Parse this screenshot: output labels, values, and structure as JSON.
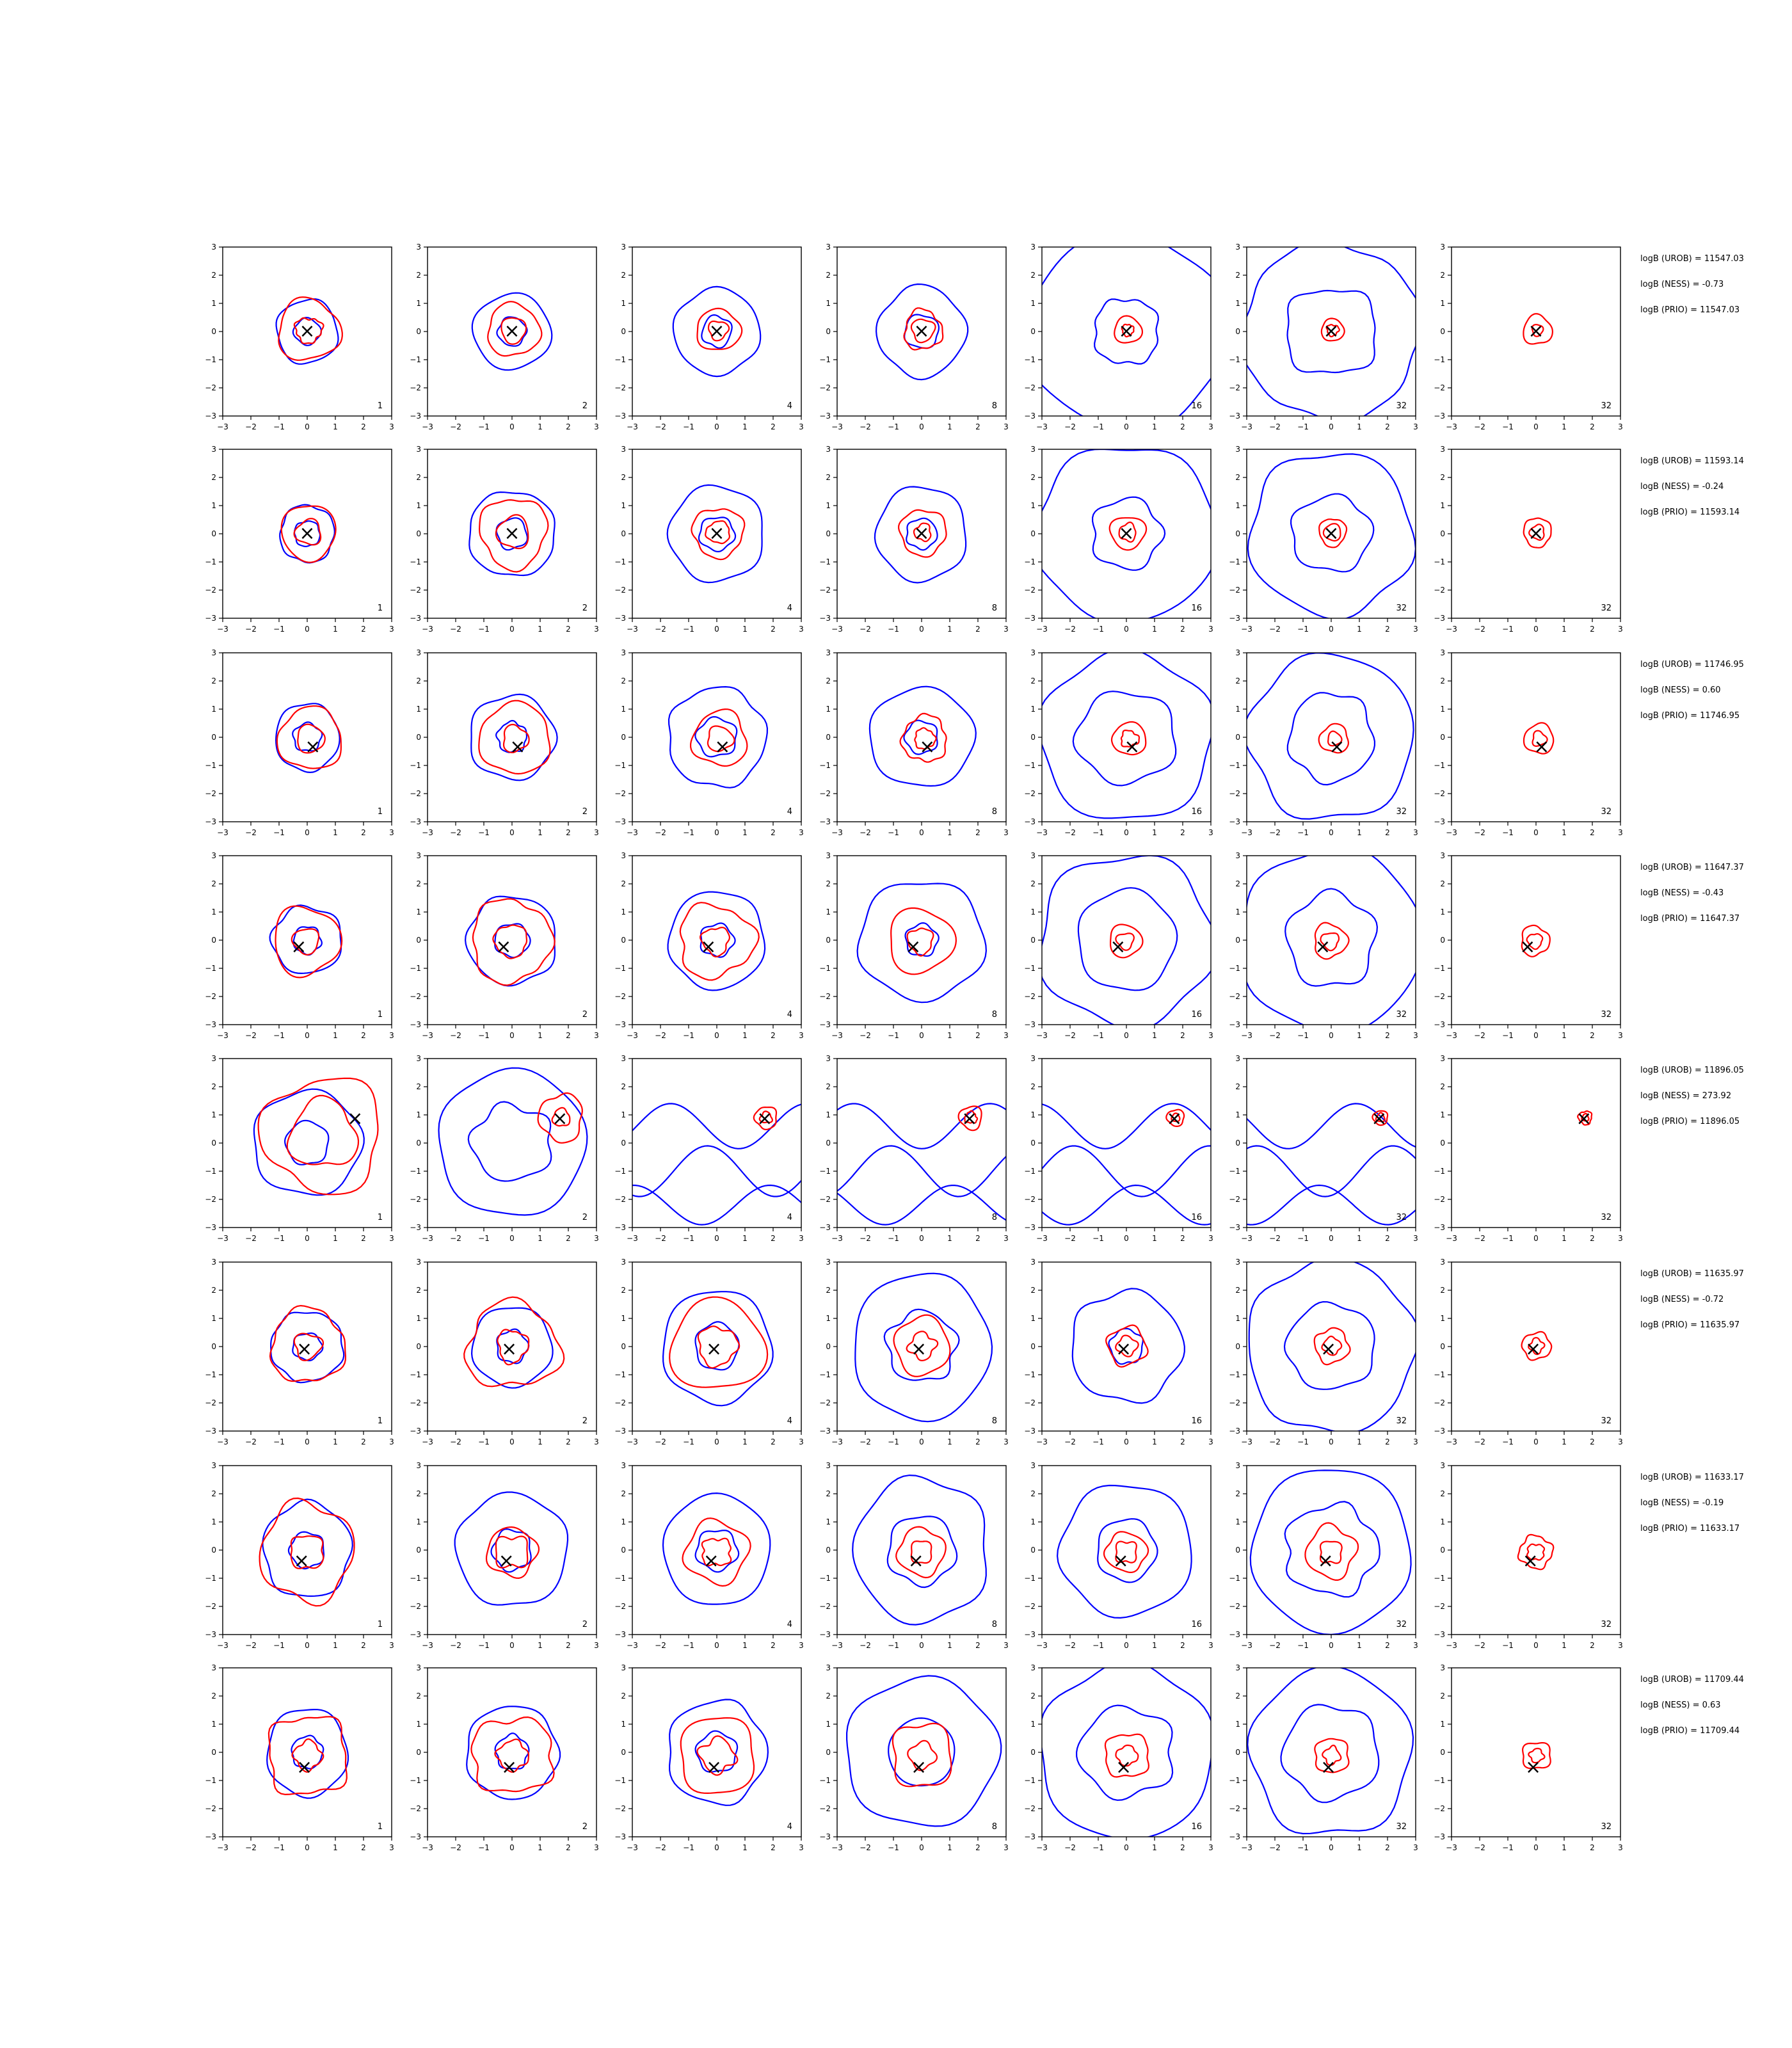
{
  "figure": {
    "axis_range": [
      -3,
      3
    ],
    "tick_labels": [
      "−3",
      "−2",
      "−1",
      "0",
      "1",
      "2",
      "3"
    ],
    "columns": [
      {
        "corner_label": "1"
      },
      {
        "corner_label": "2"
      },
      {
        "corner_label": "4"
      },
      {
        "corner_label": "8"
      },
      {
        "corner_label": "16"
      },
      {
        "corner_label": "32"
      },
      {
        "corner_label": "32"
      }
    ],
    "colors": {
      "outer_contours": "#0000ff",
      "inner_contours": "#ff0000",
      "marker": "#000000"
    },
    "marker_glyph": "×"
  },
  "chart_data": {
    "type": "contour",
    "grid": "7 columns x 8 rows of contour panels",
    "x_range": [
      -3,
      3
    ],
    "y_range": [
      -3,
      3
    ],
    "rows": [
      {
        "marker": [
          0.0,
          0.0
        ],
        "blue_radii": [
          [
            1.1,
            0.45
          ],
          [
            1.3,
            0.5
          ],
          [
            1.5,
            0.55
          ],
          [
            1.6,
            0.6
          ],
          [
            3.5,
            1.2
          ],
          [
            3.2,
            1.6
          ],
          []
        ],
        "red_radii": [
          [
            1.1,
            0.45
          ],
          [
            0.9,
            0.45
          ],
          [
            0.75,
            0.35
          ],
          [
            0.7,
            0.4
          ],
          [
            0.5,
            0.2
          ],
          [
            0.4,
            0.2
          ],
          [
            0.5,
            0.2
          ]
        ],
        "text": {
          "urob": "logB (UROB) = 11547.03",
          "ness": "logB (NESS) = -0.73",
          "prio": "logB (PRIO) = 11547.03"
        }
      },
      {
        "marker": [
          0.0,
          0.0
        ],
        "blue_radii": [
          [
            1.0,
            0.45
          ],
          [
            1.5,
            0.55
          ],
          [
            1.7,
            0.6
          ],
          [
            1.7,
            0.55
          ],
          [
            3.2,
            1.3
          ],
          [
            3.0,
            1.4
          ],
          []
        ],
        "red_radii": [
          [
            1.0,
            0.45
          ],
          [
            1.2,
            0.55
          ],
          [
            0.9,
            0.4
          ],
          [
            0.8,
            0.3
          ],
          [
            0.6,
            0.3
          ],
          [
            0.5,
            0.3
          ],
          [
            0.5,
            0.25
          ]
        ],
        "text": {
          "urob": "logB (UROB) = 11593.14",
          "ness": "logB (NESS) = -0.24",
          "prio": "logB (PRIO) = 11593.14"
        }
      },
      {
        "marker": [
          0.2,
          -0.35
        ],
        "blue_radii": [
          [
            1.2,
            0.5
          ],
          [
            1.5,
            0.55
          ],
          [
            1.8,
            0.7
          ],
          [
            1.8,
            0.6
          ],
          [
            3.1,
            1.7
          ],
          [
            3.1,
            1.5
          ],
          []
        ],
        "red_radii": [
          [
            1.1,
            0.5
          ],
          [
            1.2,
            0.45
          ],
          [
            1.0,
            0.45
          ],
          [
            0.8,
            0.35
          ],
          [
            0.6,
            0.3
          ],
          [
            0.5,
            0.25
          ],
          [
            0.5,
            0.25
          ]
        ],
        "text": {
          "urob": "logB (UROB) = 11746.95",
          "ness": "logB (NESS) = 0.60",
          "prio": "logB (PRIO) = 11746.95"
        }
      },
      {
        "marker": [
          -0.3,
          -0.25
        ],
        "blue_radii": [
          [
            1.2,
            0.5
          ],
          [
            1.6,
            0.6
          ],
          [
            1.8,
            0.6
          ],
          [
            2.2,
            0.6
          ],
          [
            3.2,
            1.7
          ],
          [
            3.1,
            1.6
          ],
          []
        ],
        "red_radii": [
          [
            1.2,
            0.45
          ],
          [
            1.4,
            0.55
          ],
          [
            1.3,
            0.5
          ],
          [
            1.1,
            0.45
          ],
          [
            0.6,
            0.3
          ],
          [
            0.6,
            0.3
          ],
          [
            0.5,
            0.25
          ]
        ],
        "text": {
          "urob": "logB (UROB) = 11647.37",
          "ness": "logB (NESS) = -0.43",
          "prio": "logB (PRIO) = 11647.37"
        }
      },
      {
        "marker": [
          1.7,
          0.85
        ],
        "blue_radii": [
          [
            1.9,
            0.8
          ],
          [
            2.7,
            1.4
          ],
          [],
          [],
          [],
          [],
          []
        ],
        "red_radii": [
          [
            2.0,
            1.2
          ],
          [
            0.8,
            0.3
          ],
          [
            0.4,
            0.2
          ],
          [
            0.4,
            0.2
          ],
          [
            0.3,
            0.15
          ],
          [
            0.25,
            0.15
          ],
          [
            0.25,
            0.12
          ]
        ],
        "text": {
          "urob": "logB (UROB) = 11896.05",
          "ness": "logB (NESS) = 273.92",
          "prio": "logB (PRIO) = 11896.05"
        }
      },
      {
        "marker": [
          -0.1,
          -0.1
        ],
        "blue_radii": [
          [
            1.3,
            0.5
          ],
          [
            1.5,
            0.55
          ],
          [
            1.9,
            0.8
          ],
          [
            2.5,
            1.2
          ],
          [
            1.9,
            0.6
          ],
          [
            3.0,
            1.5
          ],
          []
        ],
        "red_radii": [
          [
            1.3,
            0.45
          ],
          [
            1.6,
            0.55
          ],
          [
            1.6,
            0.7
          ],
          [
            1.0,
            0.45
          ],
          [
            0.7,
            0.35
          ],
          [
            0.6,
            0.3
          ],
          [
            0.5,
            0.25
          ]
        ],
        "text": {
          "urob": "logB (UROB) = 11635.97",
          "ness": "logB (NESS) = -0.72",
          "prio": "logB (PRIO) = 11635.97"
        }
      },
      {
        "marker": [
          -0.2,
          -0.4
        ],
        "blue_radii": [
          [
            1.6,
            0.6
          ],
          [
            1.9,
            0.7
          ],
          [
            1.9,
            0.7
          ],
          [
            2.5,
            1.2
          ],
          [
            2.3,
            1.1
          ],
          [
            2.9,
            1.6
          ],
          []
        ],
        "red_radii": [
          [
            1.7,
            0.6
          ],
          [
            0.9,
            0.6
          ],
          [
            1.1,
            0.5
          ],
          [
            0.8,
            0.4
          ],
          [
            0.7,
            0.4
          ],
          [
            0.9,
            0.4
          ],
          [
            0.6,
            0.3
          ]
        ],
        "text": {
          "urob": "logB (UROB) = 11633.17",
          "ness": "logB (NESS) = -0.19",
          "prio": "logB (PRIO) = 11633.17"
        }
      },
      {
        "marker": [
          -0.1,
          -0.55
        ],
        "blue_radii": [
          [
            1.5,
            0.55
          ],
          [
            1.6,
            0.6
          ],
          [
            1.8,
            0.7
          ],
          [
            2.6,
            1.2
          ],
          [
            3.1,
            1.6
          ],
          [
            3.0,
            1.7
          ],
          []
        ],
        "red_radii": [
          [
            1.4,
            0.5
          ],
          [
            1.4,
            0.55
          ],
          [
            1.4,
            0.6
          ],
          [
            1.1,
            0.45
          ],
          [
            0.8,
            0.35
          ],
          [
            0.6,
            0.3
          ],
          [
            0.5,
            0.25
          ]
        ],
        "text": {
          "urob": "logB (UROB) = 11709.44",
          "ness": "logB (NESS) = 0.63",
          "prio": "logB (PRIO) = 11709.44"
        }
      }
    ]
  }
}
